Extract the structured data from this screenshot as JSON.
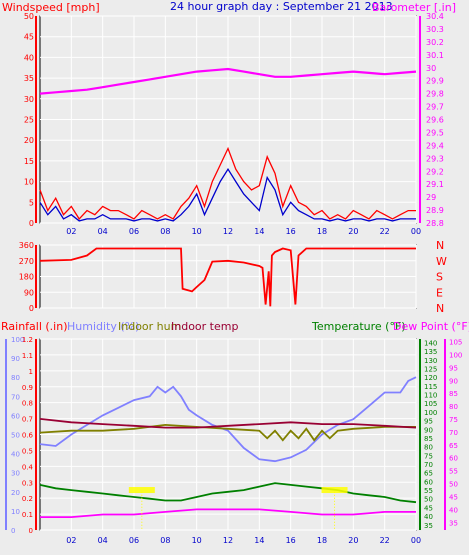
{
  "header": {
    "windspeed_label": "Windspeed [mph]",
    "title": "24 hour graph day : September 21 2013",
    "barometer_label": "Barometer [.in]"
  },
  "colors": {
    "background": "#ececec",
    "wind": "#ff0000",
    "gust": "#0000cc",
    "barometer": "#ff00ff",
    "direction": "#ff0000",
    "humidity": "#8080ff",
    "indoor_hum": "#808000",
    "indoor_temp": "#990033",
    "temperature": "#008000",
    "dew_point": "#ff00ff",
    "rainfall": "#ff0000",
    "dot_yellow": "#ffff00"
  },
  "chart_data": [
    {
      "type": "line",
      "id": "wind-barometer",
      "x_ticks": [
        "02",
        "04",
        "06",
        "08",
        "10",
        "12",
        "14",
        "16",
        "18",
        "20",
        "22",
        "00"
      ],
      "xlim": [
        0,
        24
      ],
      "left_axis": {
        "label": "Windspeed [mph]",
        "ticks": [
          "0",
          "5",
          "10",
          "15",
          "20",
          "25",
          "30",
          "35",
          "40",
          "45",
          "50"
        ],
        "ylim": [
          0,
          50
        ]
      },
      "right_axis": {
        "label": "Barometer [.in]",
        "ticks": [
          "28.8",
          "28.9",
          "29",
          "29.1",
          "29.2",
          "29.3",
          "29.4",
          "29.5",
          "29.6",
          "29.7",
          "29.8",
          "29.9",
          "30",
          "30.1",
          "30.2",
          "30.3",
          "30.4"
        ],
        "ylim": [
          28.8,
          30.4
        ]
      },
      "grid": true,
      "series": [
        {
          "role": "wind",
          "axis": "left",
          "color": "#ff0000",
          "x": [
            0,
            0.5,
            1,
            1.5,
            2,
            2.5,
            3,
            3.5,
            4,
            4.5,
            5,
            5.5,
            6,
            6.5,
            7,
            7.5,
            8,
            8.5,
            9,
            9.5,
            10,
            10.5,
            11,
            11.5,
            12,
            12.5,
            13,
            13.5,
            14,
            14.5,
            15,
            15.5,
            16,
            16.5,
            17,
            17.5,
            18,
            18.5,
            19,
            19.5,
            20,
            20.5,
            21,
            21.5,
            22,
            22.5,
            23,
            23.5,
            24
          ],
          "values": [
            8,
            3,
            6,
            2,
            4,
            1,
            3,
            2,
            4,
            3,
            3,
            2,
            1,
            3,
            2,
            1,
            2,
            1,
            4,
            6,
            9,
            4,
            10,
            14,
            18,
            13,
            10,
            8,
            9,
            16,
            12,
            4,
            9,
            5,
            4,
            2,
            3,
            1,
            2,
            1,
            3,
            2,
            1,
            3,
            2,
            1,
            2,
            3,
            3
          ]
        },
        {
          "role": "gust",
          "axis": "left",
          "color": "#0000cc",
          "x": [
            0,
            0.5,
            1,
            1.5,
            2,
            2.5,
            3,
            3.5,
            4,
            4.5,
            5,
            5.5,
            6,
            6.5,
            7,
            7.5,
            8,
            8.5,
            9,
            9.5,
            10,
            10.5,
            11,
            11.5,
            12,
            12.5,
            13,
            13.5,
            14,
            14.5,
            15,
            15.5,
            16,
            16.5,
            17,
            17.5,
            18,
            18.5,
            19,
            19.5,
            20,
            20.5,
            21,
            21.5,
            22,
            22.5,
            23,
            23.5,
            24
          ],
          "values": [
            5,
            2,
            4,
            1,
            2,
            0.5,
            1,
            1,
            2,
            1,
            1,
            1,
            0.5,
            1,
            1,
            0.5,
            1,
            0.5,
            2,
            4,
            7,
            2,
            6,
            10,
            13,
            10,
            7,
            5,
            3,
            11,
            8,
            2,
            5,
            3,
            2,
            1,
            1,
            0.5,
            1,
            0.5,
            1,
            1,
            0.5,
            1,
            1,
            0.5,
            1,
            1,
            1
          ]
        },
        {
          "role": "barometer",
          "axis": "right",
          "color": "#ff00ff",
          "x": [
            0,
            1,
            2,
            3,
            4,
            5,
            6,
            7,
            8,
            9,
            10,
            11,
            12,
            13,
            14,
            15,
            16,
            17,
            18,
            19,
            20,
            21,
            22,
            23,
            24
          ],
          "values": [
            29.8,
            29.81,
            29.82,
            29.83,
            29.85,
            29.87,
            29.89,
            29.91,
            29.93,
            29.95,
            29.97,
            29.98,
            29.99,
            29.97,
            29.95,
            29.93,
            29.93,
            29.94,
            29.95,
            29.96,
            29.97,
            29.96,
            29.95,
            29.96,
            29.97
          ]
        }
      ]
    },
    {
      "type": "line",
      "id": "wind-direction",
      "left_axis": {
        "ticks": [
          "0",
          "90",
          "180",
          "270",
          "360"
        ],
        "ylim": [
          0,
          360
        ]
      },
      "right_labels": [
        "N",
        "W",
        "S",
        "E",
        "N"
      ],
      "xlim": [
        0,
        24
      ],
      "series": [
        {
          "role": "direction",
          "color": "#ff0000",
          "x": [
            0,
            2,
            3,
            3.6,
            9,
            9.1,
            9.7,
            10,
            10.5,
            11,
            12,
            13,
            14,
            14.2,
            14.4,
            14.6,
            14.7,
            14.8,
            15,
            15.5,
            16,
            16.3,
            16.5,
            17,
            18,
            20,
            22,
            24
          ],
          "values": [
            270,
            275,
            300,
            340,
            340,
            110,
            95,
            120,
            160,
            265,
            270,
            260,
            240,
            230,
            20,
            210,
            10,
            300,
            320,
            340,
            330,
            20,
            300,
            340,
            340,
            340,
            340,
            340
          ]
        }
      ]
    },
    {
      "type": "line",
      "id": "rain-humidity-temp",
      "x_ticks": [
        "02",
        "04",
        "06",
        "08",
        "10",
        "12",
        "14",
        "16",
        "18",
        "20",
        "22",
        "00"
      ],
      "xlim": [
        0,
        24
      ],
      "labels": {
        "rainfall": "Rainfall (.in)",
        "humidity": "Humidity (%)",
        "indoor_hum": "Indoor hum",
        "indoor_temp": "Indoor temp",
        "temperature": "Temperature (°F)",
        "dew_point": "Dew Point (°F)"
      },
      "axis_rain": {
        "ticks": [
          "0",
          "0.1",
          "0.2",
          "0.3",
          "0.4",
          "0.5",
          "0.6",
          "0.7",
          "0.8",
          "0.9",
          "1",
          "1.1",
          "1.2"
        ],
        "ylim": [
          0,
          1.2
        ]
      },
      "axis_humidity": {
        "ticks": [
          "0",
          "10",
          "20",
          "30",
          "40",
          "50",
          "60",
          "70",
          "80",
          "90",
          "100"
        ],
        "ylim": [
          0,
          100
        ]
      },
      "axis_temp": {
        "ticks": [
          "35",
          "40",
          "45",
          "50",
          "55",
          "60",
          "65",
          "70",
          "75",
          "80",
          "85",
          "90",
          "95",
          "100",
          "105",
          "110",
          "115",
          "120",
          "125",
          "130",
          "135",
          "140"
        ],
        "ylim": [
          32,
          142
        ]
      },
      "axis_dew": {
        "ticks": [
          "35",
          "40",
          "45",
          "50",
          "55",
          "60",
          "65",
          "70",
          "75",
          "80",
          "85",
          "90",
          "95",
          "100",
          "105"
        ],
        "ylim": [
          32,
          106
        ]
      },
      "grid": true,
      "series": [
        {
          "role": "humidity",
          "axis": "humidity",
          "color": "#8080ff",
          "x": [
            0,
            1,
            2,
            3,
            4,
            5,
            6,
            7,
            7.5,
            8,
            8.5,
            9,
            9.5,
            10,
            11,
            12,
            13,
            14,
            15,
            16,
            17,
            18,
            19,
            20,
            21,
            22,
            23,
            23.5,
            24
          ],
          "values": [
            45,
            44,
            50,
            55,
            60,
            64,
            68,
            70,
            75,
            72,
            75,
            70,
            63,
            60,
            55,
            52,
            43,
            37,
            36,
            38,
            42,
            50,
            55,
            58,
            65,
            72,
            72,
            78,
            80
          ]
        },
        {
          "role": "indoor_hum",
          "axis": "humidity",
          "color": "#808000",
          "x": [
            0,
            2,
            4,
            6,
            8,
            10,
            12,
            14,
            14.5,
            15,
            15.5,
            16,
            16.5,
            17,
            17.5,
            18,
            18.5,
            19,
            20,
            22,
            24
          ],
          "values": [
            51,
            52,
            52,
            53,
            55,
            54,
            53,
            52,
            48,
            52,
            47,
            52,
            48,
            53,
            47,
            52,
            48,
            52,
            53,
            54,
            54
          ]
        },
        {
          "role": "indoor_temp",
          "axis": "temp",
          "color": "#990033",
          "x": [
            0,
            2,
            4,
            6,
            8,
            10,
            12,
            14,
            16,
            18,
            20,
            22,
            24
          ],
          "values": [
            96,
            94,
            93,
            92,
            91,
            91,
            92,
            93,
            94,
            93,
            93,
            92,
            91
          ]
        },
        {
          "role": "temperature",
          "axis": "temp",
          "color": "#008000",
          "x": [
            0,
            1,
            2,
            3,
            4,
            5,
            6,
            7,
            8,
            9,
            10,
            11,
            12,
            13,
            14,
            15,
            16,
            17,
            18,
            19,
            20,
            21,
            22,
            23,
            24
          ],
          "values": [
            58,
            56,
            55,
            54,
            53,
            52,
            51,
            50,
            49,
            49,
            51,
            53,
            54,
            55,
            57,
            59,
            58,
            57,
            56,
            55,
            53,
            52,
            51,
            49,
            48
          ]
        },
        {
          "role": "dew_point",
          "axis": "dew",
          "color": "#ff00ff",
          "x": [
            0,
            2,
            4,
            6,
            8,
            10,
            12,
            14,
            16,
            18,
            20,
            22,
            24
          ],
          "values": [
            37,
            37,
            38,
            38,
            39,
            40,
            40,
            40,
            39,
            38,
            38,
            39,
            39
          ]
        }
      ],
      "rain_markers_x": [
        6.5,
        18.8
      ]
    }
  ]
}
